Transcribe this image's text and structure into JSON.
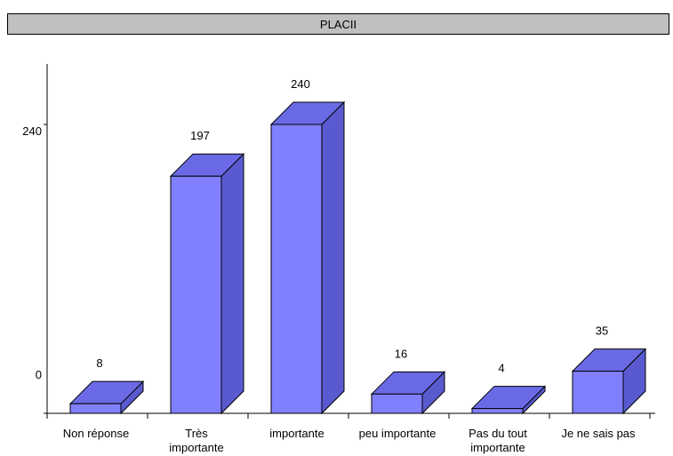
{
  "chart_data": {
    "type": "bar",
    "title": "PLACII",
    "categories": [
      [
        "Non réponse"
      ],
      [
        "Très",
        "importante"
      ],
      [
        "importante"
      ],
      [
        "peu importante"
      ],
      [
        "Pas du tout",
        "importante"
      ],
      [
        "Je ne sais pas"
      ]
    ],
    "values": [
      8,
      197,
      240,
      16,
      4,
      35
    ],
    "y_ticks": [
      "0",
      "240"
    ],
    "ylim": [
      0,
      240
    ],
    "grid": false,
    "legend": "none",
    "style": "3d-bar",
    "colors": {
      "front": "#8080ff",
      "top": "#6a6ae6",
      "side": "#5a5ad0",
      "stroke": "#000000"
    }
  }
}
